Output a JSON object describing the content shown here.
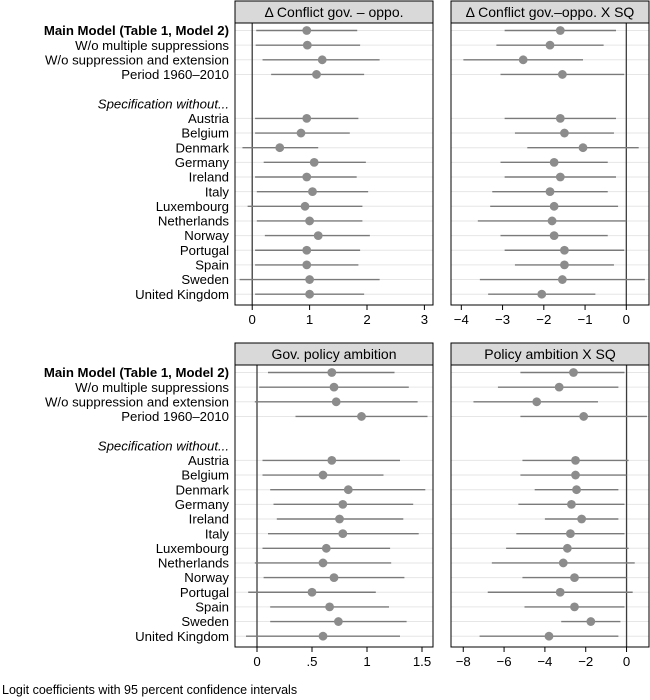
{
  "caption": "Logit coefficients with 95 percent confidence intervals",
  "chart_data": [
    {
      "type": "coefficient-dot-plot",
      "title": "Δ Conflict gov. – oppo.",
      "xlabel": "",
      "ylabel": "",
      "xlim": [
        -0.3,
        3.15
      ],
      "xticks": [
        0,
        1,
        2,
        3
      ],
      "tick_labels": [
        "0",
        "1",
        "2",
        "3"
      ],
      "reference_line": 0,
      "points": [
        {
          "label": "Main Model (Table 1, Model 2)",
          "est": 0.95,
          "lo": 0.07,
          "hi": 1.83
        },
        {
          "label": "W/o multiple suppressions",
          "est": 0.96,
          "lo": 0.06,
          "hi": 1.88
        },
        {
          "label": "W/o suppression and extension",
          "est": 1.22,
          "lo": 0.18,
          "hi": 2.22
        },
        {
          "label": "Period 1960–2010",
          "est": 1.12,
          "lo": 0.33,
          "hi": 1.95
        },
        {
          "label": "Austria",
          "est": 0.95,
          "lo": 0.05,
          "hi": 1.85
        },
        {
          "label": "Belgium",
          "est": 0.85,
          "lo": 0.05,
          "hi": 1.7
        },
        {
          "label": "Denmark",
          "est": 0.48,
          "lo": -0.17,
          "hi": 1.15
        },
        {
          "label": "Germany",
          "est": 1.08,
          "lo": 0.2,
          "hi": 1.98
        },
        {
          "label": "Ireland",
          "est": 0.95,
          "lo": 0.05,
          "hi": 1.82
        },
        {
          "label": "Italy",
          "est": 1.05,
          "lo": 0.08,
          "hi": 2.02
        },
        {
          "label": "Luxembourg",
          "est": 0.92,
          "lo": -0.08,
          "hi": 1.92
        },
        {
          "label": "Netherlands",
          "est": 1.0,
          "lo": 0.08,
          "hi": 1.92
        },
        {
          "label": "Norway",
          "est": 1.15,
          "lo": 0.22,
          "hi": 2.05
        },
        {
          "label": "Portugal",
          "est": 0.95,
          "lo": 0.05,
          "hi": 1.88
        },
        {
          "label": "Spain",
          "est": 0.95,
          "lo": 0.05,
          "hi": 1.85
        },
        {
          "label": "Sweden",
          "est": 1.0,
          "lo": -0.22,
          "hi": 2.22
        },
        {
          "label": "United Kingdom",
          "est": 1.0,
          "lo": 0.05,
          "hi": 1.95
        }
      ]
    },
    {
      "type": "coefficient-dot-plot",
      "title": "Δ Conflict gov.–oppo. X SQ",
      "xlabel": "",
      "ylabel": "",
      "xlim": [
        -4.25,
        0.55
      ],
      "xticks": [
        -4,
        -3,
        -2,
        -1,
        0
      ],
      "tick_labels": [
        "−4",
        "−3",
        "−2",
        "−1",
        "0"
      ],
      "reference_line": 0,
      "points": [
        {
          "label": "Main Model (Table 1, Model 2)",
          "est": -1.6,
          "lo": -2.95,
          "hi": -0.25
        },
        {
          "label": "W/o multiple suppressions",
          "est": -1.85,
          "lo": -3.15,
          "hi": -0.55
        },
        {
          "label": "W/o suppression and extension",
          "est": -2.5,
          "lo": -3.95,
          "hi": -1.05
        },
        {
          "label": "Period 1960–2010",
          "est": -1.55,
          "lo": -3.05,
          "hi": -0.05
        },
        {
          "label": "Austria",
          "est": -1.6,
          "lo": -2.95,
          "hi": -0.25
        },
        {
          "label": "Belgium",
          "est": -1.5,
          "lo": -2.7,
          "hi": -0.3
        },
        {
          "label": "Denmark",
          "est": -1.05,
          "lo": -2.4,
          "hi": 0.3
        },
        {
          "label": "Germany",
          "est": -1.75,
          "lo": -3.05,
          "hi": -0.45
        },
        {
          "label": "Ireland",
          "est": -1.6,
          "lo": -2.95,
          "hi": -0.25
        },
        {
          "label": "Italy",
          "est": -1.85,
          "lo": -3.25,
          "hi": -0.45
        },
        {
          "label": "Luxembourg",
          "est": -1.75,
          "lo": -3.3,
          "hi": -0.2
        },
        {
          "label": "Netherlands",
          "est": -1.8,
          "lo": -3.6,
          "hi": 0.0
        },
        {
          "label": "Norway",
          "est": -1.75,
          "lo": -3.05,
          "hi": -0.45
        },
        {
          "label": "Portugal",
          "est": -1.5,
          "lo": -2.95,
          "hi": -0.05
        },
        {
          "label": "Spain",
          "est": -1.5,
          "lo": -2.7,
          "hi": -0.3
        },
        {
          "label": "Sweden",
          "est": -1.55,
          "lo": -3.55,
          "hi": 0.45
        },
        {
          "label": "United Kingdom",
          "est": -2.05,
          "lo": -3.35,
          "hi": -0.75
        }
      ]
    },
    {
      "type": "coefficient-dot-plot",
      "title": "Gov. policy ambition",
      "xlabel": "",
      "ylabel": "",
      "xlim": [
        -0.2,
        1.6
      ],
      "xticks": [
        0,
        0.5,
        1,
        1.5
      ],
      "tick_labels": [
        "0",
        ".5",
        "1",
        "1.5"
      ],
      "reference_line": 0,
      "points": [
        {
          "label": "Main Model (Table 1, Model 2)",
          "est": 0.68,
          "lo": 0.1,
          "hi": 1.25
        },
        {
          "label": "W/o multiple suppressions",
          "est": 0.7,
          "lo": 0.02,
          "hi": 1.38
        },
        {
          "label": "W/o suppression and extension",
          "est": 0.72,
          "lo": -0.02,
          "hi": 1.46
        },
        {
          "label": "Period 1960–2010",
          "est": 0.95,
          "lo": 0.35,
          "hi": 1.55
        },
        {
          "label": "Austria",
          "est": 0.68,
          "lo": 0.05,
          "hi": 1.3
        },
        {
          "label": "Belgium",
          "est": 0.6,
          "lo": 0.05,
          "hi": 1.15
        },
        {
          "label": "Denmark",
          "est": 0.83,
          "lo": 0.12,
          "hi": 1.53
        },
        {
          "label": "Germany",
          "est": 0.78,
          "lo": 0.15,
          "hi": 1.42
        },
        {
          "label": "Ireland",
          "est": 0.75,
          "lo": 0.18,
          "hi": 1.33
        },
        {
          "label": "Italy",
          "est": 0.78,
          "lo": 0.1,
          "hi": 1.47
        },
        {
          "label": "Luxembourg",
          "est": 0.63,
          "lo": 0.05,
          "hi": 1.21
        },
        {
          "label": "Netherlands",
          "est": 0.6,
          "lo": -0.02,
          "hi": 1.22
        },
        {
          "label": "Norway",
          "est": 0.7,
          "lo": 0.06,
          "hi": 1.34
        },
        {
          "label": "Portugal",
          "est": 0.5,
          "lo": -0.08,
          "hi": 1.08
        },
        {
          "label": "Spain",
          "est": 0.66,
          "lo": 0.12,
          "hi": 1.2
        },
        {
          "label": "Sweden",
          "est": 0.74,
          "lo": 0.12,
          "hi": 1.36
        },
        {
          "label": "United Kingdom",
          "est": 0.6,
          "lo": -0.1,
          "hi": 1.3
        }
      ]
    },
    {
      "type": "coefficient-dot-plot",
      "title": "Policy ambition X SQ",
      "xlabel": "",
      "ylabel": "",
      "xlim": [
        -8.6,
        1.1
      ],
      "xticks": [
        -8,
        -6,
        -4,
        -2,
        0
      ],
      "tick_labels": [
        "−8",
        "−6",
        "−4",
        "−2",
        "0"
      ],
      "reference_line": 0,
      "points": [
        {
          "label": "Main Model (Table 1, Model 2)",
          "est": -2.6,
          "lo": -5.2,
          "hi": -0.1
        },
        {
          "label": "W/o multiple suppressions",
          "est": -3.3,
          "lo": -6.3,
          "hi": -0.4
        },
        {
          "label": "W/o suppression and extension",
          "est": -4.4,
          "lo": -7.5,
          "hi": -1.4
        },
        {
          "label": "Period 1960–2010",
          "est": -2.1,
          "lo": -5.2,
          "hi": 1.0
        },
        {
          "label": "Austria",
          "est": -2.5,
          "lo": -5.1,
          "hi": 0.1
        },
        {
          "label": "Belgium",
          "est": -2.5,
          "lo": -5.2,
          "hi": 0.0
        },
        {
          "label": "Denmark",
          "est": -2.45,
          "lo": -4.5,
          "hi": -0.4
        },
        {
          "label": "Germany",
          "est": -2.7,
          "lo": -5.3,
          "hi": -0.1
        },
        {
          "label": "Ireland",
          "est": -2.2,
          "lo": -4.0,
          "hi": -0.4
        },
        {
          "label": "Italy",
          "est": -2.75,
          "lo": -5.4,
          "hi": -0.1
        },
        {
          "label": "Luxembourg",
          "est": -2.9,
          "lo": -5.9,
          "hi": 0.1
        },
        {
          "label": "Netherlands",
          "est": -3.1,
          "lo": -6.6,
          "hi": 0.4
        },
        {
          "label": "Norway",
          "est": -2.55,
          "lo": -5.1,
          "hi": 0.0
        },
        {
          "label": "Portugal",
          "est": -3.25,
          "lo": -6.8,
          "hi": 0.3
        },
        {
          "label": "Spain",
          "est": -2.55,
          "lo": -5.0,
          "hi": -0.1
        },
        {
          "label": "Sweden",
          "est": -1.75,
          "lo": -3.2,
          "hi": -0.3
        },
        {
          "label": "United Kingdom",
          "est": -3.8,
          "lo": -7.2,
          "hi": -0.4
        }
      ]
    }
  ],
  "row_groups": {
    "header_label": "Specification without..."
  },
  "colors": {
    "point": "#8c8c8c",
    "ci_line": "#7a7a7a",
    "grid": "#e6e6e6",
    "reference_line": "#3c3c3c",
    "strip_fill": "#d9d9d9",
    "frame": "#000000"
  }
}
